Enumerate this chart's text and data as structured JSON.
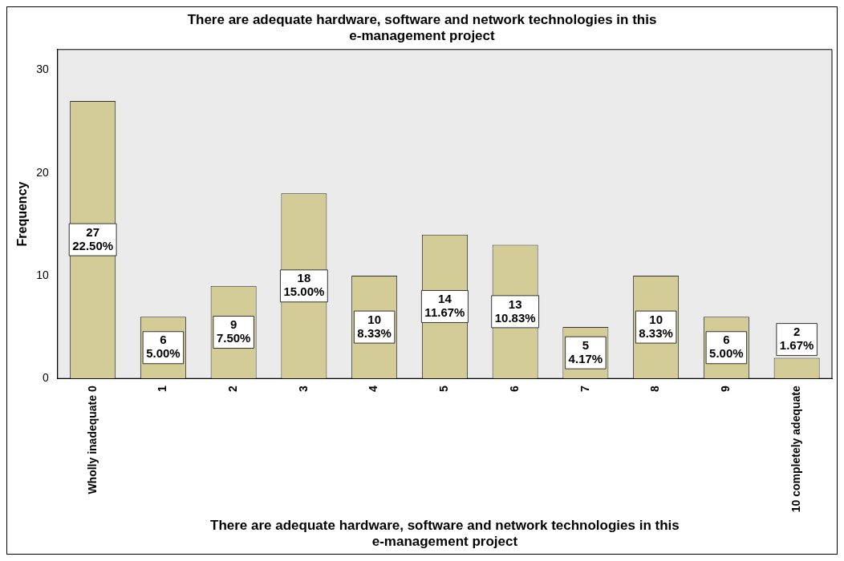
{
  "chart_data": {
    "type": "bar",
    "title": "There are adequate hardware, software and network technologies in this e-management project",
    "xlabel": "There are adequate hardware, software and network technologies in this e-management project",
    "ylabel": "Frequency",
    "categories": [
      "Wholly inadequate 0",
      "1",
      "2",
      "3",
      "4",
      "5",
      "6",
      "7",
      "8",
      "9",
      "10 completely adequate"
    ],
    "values": [
      27,
      6,
      9,
      18,
      10,
      14,
      13,
      5,
      10,
      6,
      2
    ],
    "value_labels": [
      "27\n22.50%",
      "6\n5.00%",
      "9\n7.50%",
      "18\n15.00%",
      "10\n8.33%",
      "14\n11.67%",
      "13\n10.83%",
      "5\n4.17%",
      "10\n8.33%",
      "6\n5.00%",
      "2\n1.67%"
    ],
    "color": "#d4cc96",
    "ylim": [
      0,
      32
    ],
    "yticks": [
      0,
      10,
      20,
      30
    ],
    "grid": false,
    "legend": false
  }
}
